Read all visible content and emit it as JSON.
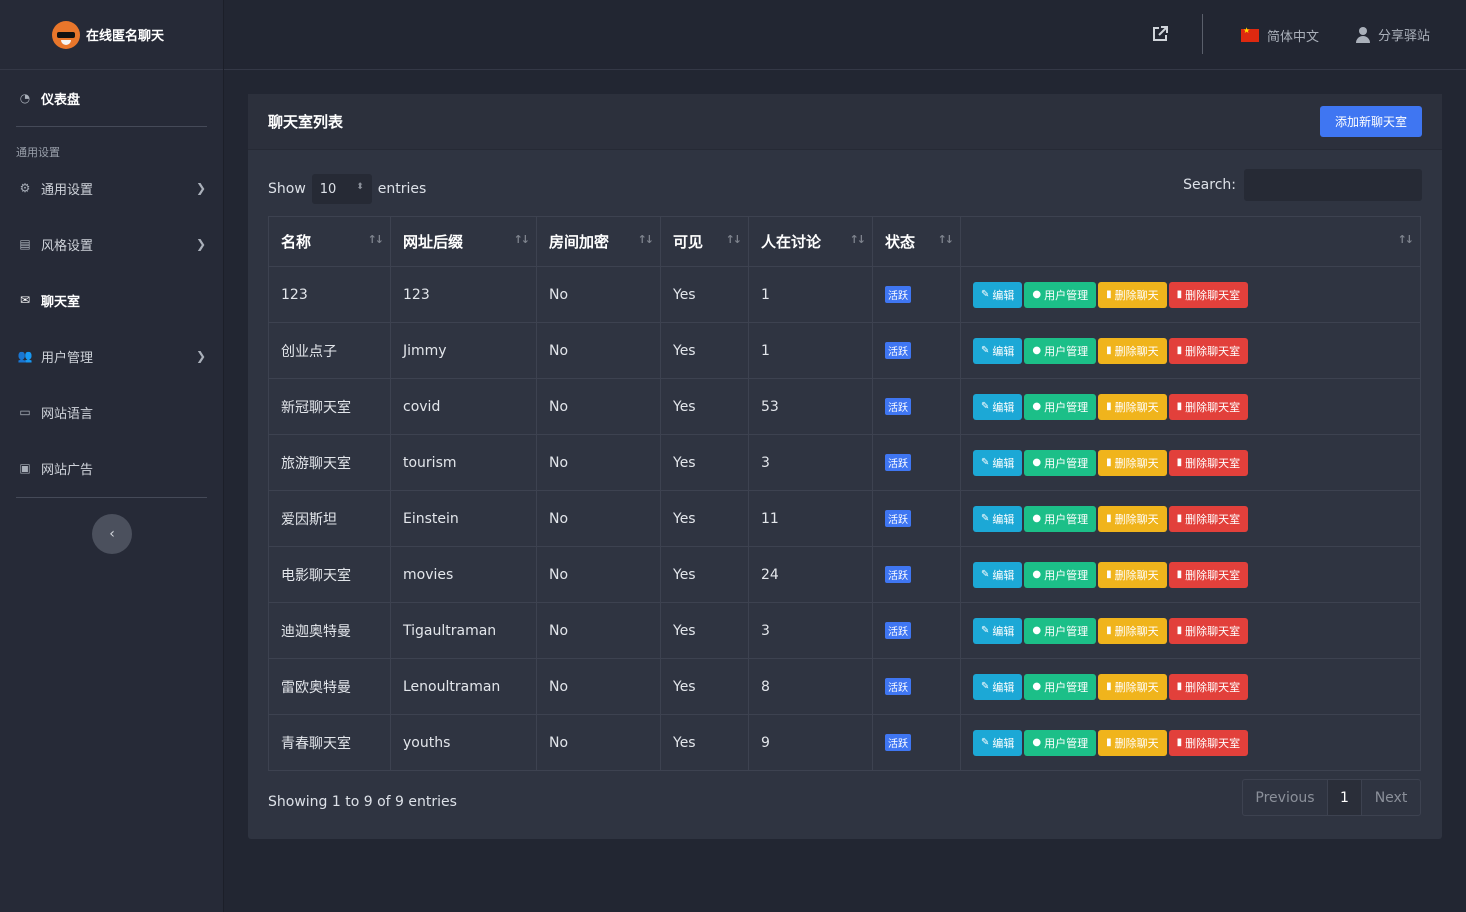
{
  "brand": {
    "title": "在线匿名聊天"
  },
  "sidebar": {
    "dashboard": "仪表盘",
    "section_header": "通用设置",
    "items": [
      {
        "label": "通用设置",
        "icon": "gear-icon",
        "has_submenu": true
      },
      {
        "label": "风格设置",
        "icon": "palette-icon",
        "has_submenu": true
      },
      {
        "label": "聊天室",
        "icon": "chat-icon",
        "has_submenu": false,
        "active": true
      },
      {
        "label": "用户管理",
        "icon": "users-icon",
        "has_submenu": true
      },
      {
        "label": "网站语言",
        "icon": "language-icon",
        "has_submenu": false
      },
      {
        "label": "网站广告",
        "icon": "ad-icon",
        "has_submenu": false
      }
    ]
  },
  "topbar": {
    "language": "简体中文",
    "share": "分享驿站"
  },
  "card": {
    "title": "聊天室列表",
    "add_button": "添加新聊天室",
    "show_label": "Show",
    "entries_value": "10",
    "entries_label": "entries",
    "search_label": "Search:",
    "showing_text": "Showing 1 to 9 of 9 entries",
    "pager": {
      "prev": "Previous",
      "current": "1",
      "next": "Next"
    }
  },
  "table": {
    "headers": [
      "名称",
      "网址后缀",
      "房间加密",
      "可见",
      "人在讨论",
      "状态",
      ""
    ],
    "action_labels": {
      "edit": "编辑",
      "users": "用户管理",
      "delete_chat": "删除聊天",
      "delete_room": "删除聊天室"
    },
    "rows": [
      {
        "name": "123",
        "slug": "123",
        "encrypted": "No",
        "visible": "Yes",
        "count": "1",
        "status": "活跃"
      },
      {
        "name": "创业点子",
        "slug": "Jimmy",
        "encrypted": "No",
        "visible": "Yes",
        "count": "1",
        "status": "活跃"
      },
      {
        "name": "新冠聊天室",
        "slug": "covid",
        "encrypted": "No",
        "visible": "Yes",
        "count": "53",
        "status": "活跃"
      },
      {
        "name": "旅游聊天室",
        "slug": "tourism",
        "encrypted": "No",
        "visible": "Yes",
        "count": "3",
        "status": "活跃"
      },
      {
        "name": "爱因斯坦",
        "slug": "Einstein",
        "encrypted": "No",
        "visible": "Yes",
        "count": "11",
        "status": "活跃"
      },
      {
        "name": "电影聊天室",
        "slug": "movies",
        "encrypted": "No",
        "visible": "Yes",
        "count": "24",
        "status": "活跃"
      },
      {
        "name": "迪迦奥特曼",
        "slug": "Tigaultraman",
        "encrypted": "No",
        "visible": "Yes",
        "count": "3",
        "status": "活跃"
      },
      {
        "name": "雷欧奥特曼",
        "slug": "Lenoultraman",
        "encrypted": "No",
        "visible": "Yes",
        "count": "8",
        "status": "活跃"
      },
      {
        "name": "青春聊天室",
        "slug": "youths",
        "encrypted": "No",
        "visible": "Yes",
        "count": "9",
        "status": "活跃"
      }
    ]
  }
}
